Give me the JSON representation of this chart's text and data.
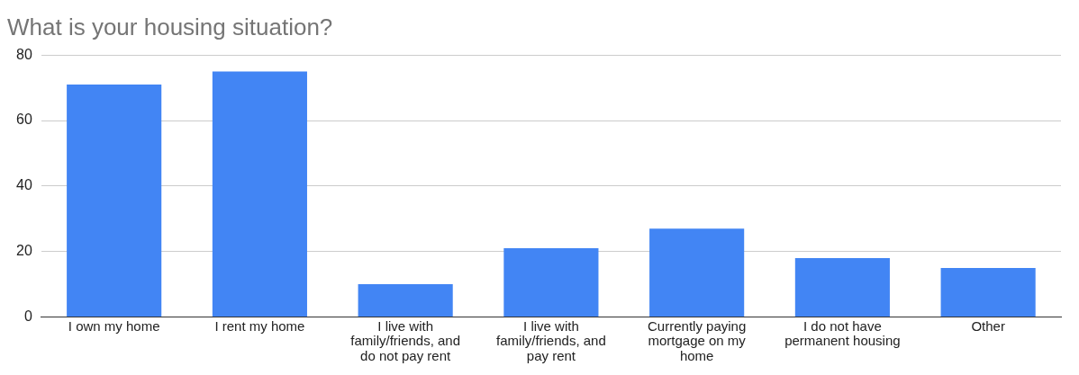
{
  "chart_data": {
    "type": "bar",
    "title": "What is your housing situation?",
    "categories": [
      "I own my home",
      "I rent my home",
      "I live with family/friends, and do not pay rent",
      "I live with family/friends, and pay rent",
      "Currently paying mortgage on my home",
      "I do not have permanent housing",
      "Other"
    ],
    "values": [
      71,
      75,
      10,
      21,
      27,
      18,
      15
    ],
    "color": "#4285f4",
    "ylim": [
      0,
      80
    ],
    "yticks": [
      0,
      20,
      40,
      60,
      80
    ],
    "grid": "y",
    "legend": false
  }
}
